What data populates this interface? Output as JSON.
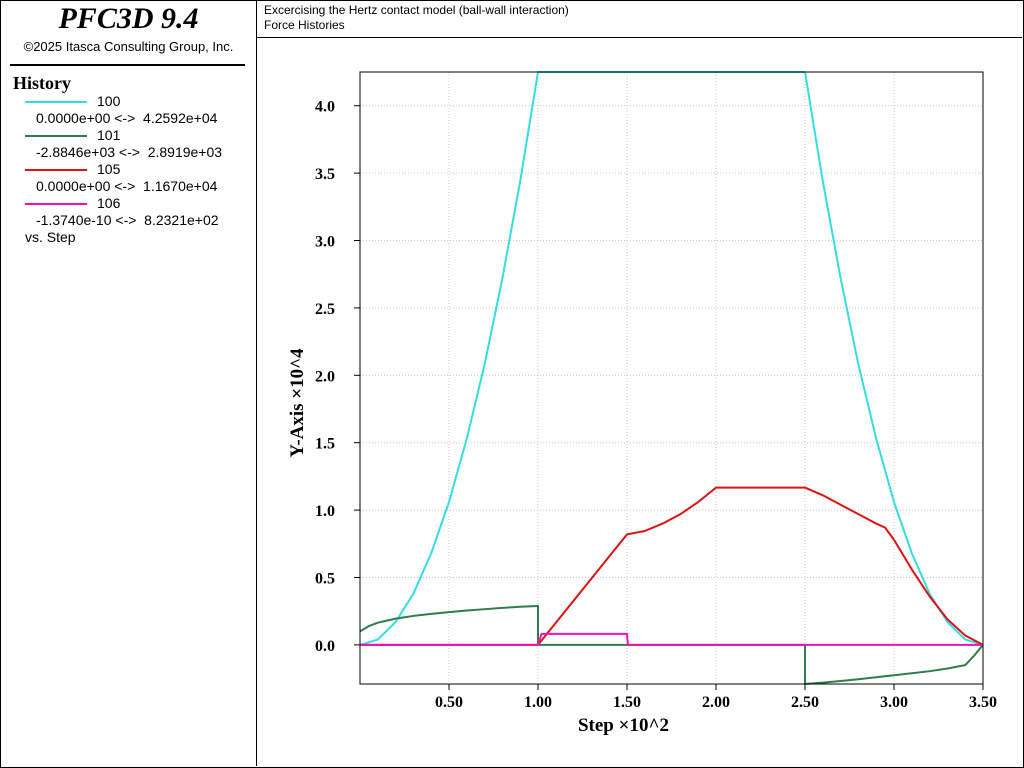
{
  "app": {
    "title": "PFC3D 9.4",
    "copyright": "©2025 Itasca Consulting Group, Inc."
  },
  "header": {
    "line1": "Excercising the Hertz contact model (ball-wall interaction)",
    "line2": "Force Histories"
  },
  "legend": {
    "heading": "History",
    "entries": [
      {
        "id": "100",
        "range": "0.0000e+00 <->  4.2592e+04",
        "color": "#33dde0"
      },
      {
        "id": "101",
        "range": "-2.8846e+03 <->  2.8919e+03",
        "color": "#2e7d4f"
      },
      {
        "id": "105",
        "range": "0.0000e+00 <->  1.1670e+04",
        "color": "#dd1111"
      },
      {
        "id": "106",
        "range": "-1.3740e-10 <->  8.2321e+02",
        "color": "#ee11bb"
      }
    ],
    "vs": "vs. Step"
  },
  "chart_data": {
    "type": "line",
    "xlabel": "Step ×10^2",
    "ylabel": "Y-Axis ×10^4",
    "xlim": [
      0,
      3.5
    ],
    "ylim": [
      -0.29,
      4.25
    ],
    "x_ticks": [
      "0.50",
      "1.00",
      "1.50",
      "2.00",
      "2.50",
      "3.00",
      "3.50"
    ],
    "y_ticks": [
      "0.0",
      "0.5",
      "1.0",
      "1.5",
      "2.0",
      "2.5",
      "3.0",
      "3.5",
      "4.0"
    ],
    "grid": true,
    "series": [
      {
        "name": "100",
        "color": "#33dde0",
        "points": [
          [
            0,
            0
          ],
          [
            0.1,
            0.04
          ],
          [
            0.2,
            0.17
          ],
          [
            0.3,
            0.38
          ],
          [
            0.4,
            0.68
          ],
          [
            0.5,
            1.06
          ],
          [
            0.6,
            1.53
          ],
          [
            0.7,
            2.08
          ],
          [
            0.8,
            2.72
          ],
          [
            0.9,
            3.44
          ],
          [
            1.0,
            4.25
          ],
          [
            2.5,
            4.25
          ],
          [
            2.6,
            3.44
          ],
          [
            2.7,
            2.72
          ],
          [
            2.8,
            2.08
          ],
          [
            2.9,
            1.53
          ],
          [
            3.0,
            1.06
          ],
          [
            3.1,
            0.68
          ],
          [
            3.2,
            0.38
          ],
          [
            3.3,
            0.17
          ],
          [
            3.4,
            0.04
          ],
          [
            3.5,
            0
          ]
        ]
      },
      {
        "name": "101",
        "color": "#2e7d4f",
        "points": [
          [
            0,
            0.1
          ],
          [
            0.05,
            0.14
          ],
          [
            0.1,
            0.165
          ],
          [
            0.2,
            0.195
          ],
          [
            0.3,
            0.215
          ],
          [
            0.4,
            0.23
          ],
          [
            0.5,
            0.243
          ],
          [
            0.6,
            0.255
          ],
          [
            0.7,
            0.265
          ],
          [
            0.8,
            0.275
          ],
          [
            0.9,
            0.283
          ],
          [
            1.0,
            0.289
          ],
          [
            1.0,
            0.01
          ],
          [
            1.01,
            0
          ],
          [
            1.5,
            0
          ],
          [
            2.5,
            0
          ],
          [
            2.5,
            -0.29
          ],
          [
            2.6,
            -0.28
          ],
          [
            2.7,
            -0.268
          ],
          [
            2.8,
            -0.255
          ],
          [
            2.9,
            -0.24
          ],
          [
            3.0,
            -0.225
          ],
          [
            3.1,
            -0.21
          ],
          [
            3.2,
            -0.195
          ],
          [
            3.3,
            -0.175
          ],
          [
            3.4,
            -0.15
          ],
          [
            3.45,
            -0.08
          ],
          [
            3.5,
            0
          ]
        ]
      },
      {
        "name": "105",
        "color": "#dd1111",
        "points": [
          [
            0,
            0
          ],
          [
            1.0,
            0
          ],
          [
            1.5,
            0.82
          ],
          [
            1.6,
            0.845
          ],
          [
            1.7,
            0.9
          ],
          [
            1.8,
            0.97
          ],
          [
            1.9,
            1.06
          ],
          [
            2.0,
            1.167
          ],
          [
            2.5,
            1.167
          ],
          [
            2.6,
            1.11
          ],
          [
            2.7,
            1.04
          ],
          [
            2.8,
            0.97
          ],
          [
            2.9,
            0.9
          ],
          [
            2.95,
            0.87
          ],
          [
            3.0,
            0.78
          ],
          [
            3.1,
            0.56
          ],
          [
            3.2,
            0.36
          ],
          [
            3.3,
            0.19
          ],
          [
            3.4,
            0.07
          ],
          [
            3.5,
            0
          ]
        ]
      },
      {
        "name": "106",
        "color": "#ee11bb",
        "points": [
          [
            0,
            0
          ],
          [
            1.0,
            0
          ],
          [
            1.02,
            0.082
          ],
          [
            1.5,
            0.082
          ],
          [
            1.505,
            0
          ],
          [
            3.5,
            0
          ]
        ]
      }
    ]
  }
}
